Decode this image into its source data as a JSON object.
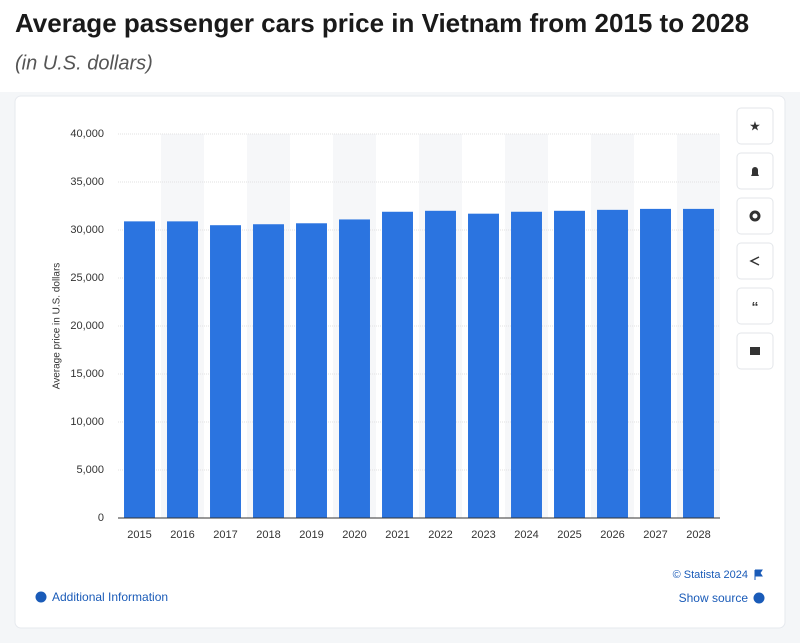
{
  "chart_data": {
    "type": "bar",
    "title": "Average passenger cars price in Vietnam from 2015 to 2028",
    "subtitle": "(in U.S. dollars)",
    "y_label": "Average price in U.S. dollars",
    "categories": [
      "2015",
      "2016",
      "2017",
      "2018",
      "2019",
      "2020",
      "2021",
      "2022",
      "2023",
      "2024",
      "2025",
      "2026",
      "2027",
      "2028"
    ],
    "values": [
      30900,
      30900,
      30500,
      30600,
      30700,
      31100,
      31900,
      32000,
      31700,
      31900,
      32000,
      32100,
      32200,
      32200
    ],
    "color": "#2b74e0",
    "ylim": [
      0,
      40000
    ],
    "yticks": [
      0,
      {
        "value": 5000,
        "label": "5,000"
      },
      {
        "value": 10000,
        "label": "10,000"
      },
      {
        "value": 15000,
        "label": "15,000"
      },
      {
        "value": 20000,
        "label": "20,000"
      },
      {
        "value": 25000,
        "label": "25,000"
      },
      {
        "value": 30000,
        "label": "30,000"
      },
      {
        "value": 35000,
        "label": "35,000"
      },
      {
        "value": 40000,
        "label": "40,000"
      }
    ],
    "grid": true
  },
  "footer": {
    "credit": "© Statista 2024",
    "additional_information": "Additional Information",
    "show_source": "Show source"
  }
}
